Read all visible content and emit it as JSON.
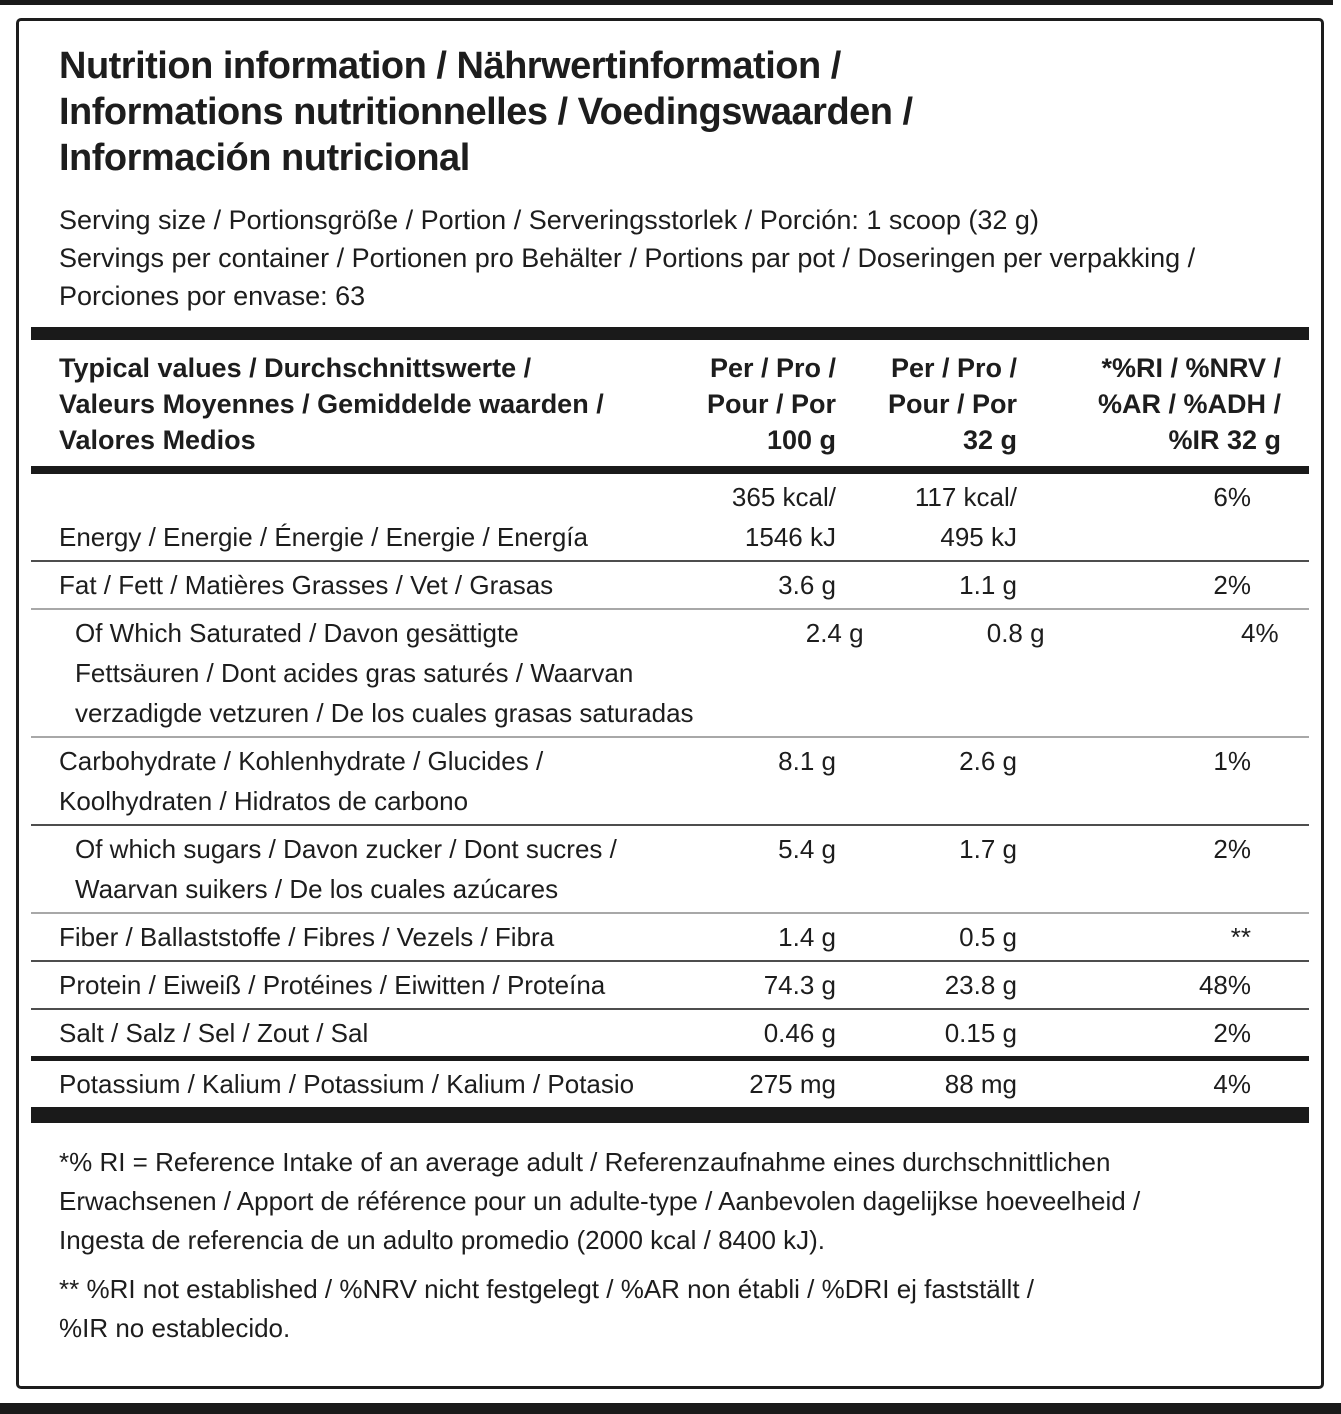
{
  "header": {
    "title_lines": [
      "Nutrition information / Nährwertinformation /",
      "Informations nutritionnelles / Voedingswaarden /",
      "Información nutricional"
    ],
    "serving_size_line": "Serving size / Portionsgröße / Portion / Serveringsstorlek / Porción: 1 scoop (32 g)",
    "servings_per_container_lines": [
      "Servings per container / Portionen pro Behälter / Portions par pot / Doseringen per verpakking /",
      "Porciones por envase: 63"
    ]
  },
  "table": {
    "columns": {
      "typical_values_lines": [
        "Typical values / Durchschnittswerte /",
        "Valeurs Moyennes / Gemiddelde waarden /",
        "Valores Medios"
      ],
      "per_100_lines": [
        "Per / Pro /",
        "Pour / Por",
        "100 g"
      ],
      "per_32_lines": [
        "Per / Pro /",
        "Pour / Por",
        "32 g"
      ],
      "ri_lines": [
        "*%RI / %NRV /",
        "%AR / %ADH /",
        "%IR 32 g"
      ]
    },
    "rows": {
      "energy": {
        "label": "Energy / Energie / Énergie / Energie / Energía",
        "kcal_100": "365 kcal/",
        "kj_100": "1546 kJ",
        "kcal_32": "117 kcal/",
        "kj_32": "495 kJ",
        "ri": "6%"
      },
      "fat": {
        "label": "Fat / Fett / Matières Grasses / Vet / Grasas",
        "v100": "3.6 g",
        "v32": "1.1 g",
        "ri": "2%"
      },
      "saturated": {
        "label_lines": [
          "Of Which Saturated / Davon gesättigte",
          "Fettsäuren / Dont acides gras saturés / Waarvan",
          "verzadigde vetzuren / De los cuales grasas saturadas"
        ],
        "v100": "2.4 g",
        "v32": "0.8 g",
        "ri": "4%"
      },
      "carbohydrate": {
        "label_lines": [
          "Carbohydrate / Kohlenhydrate / Glucides /",
          "Koolhydraten / Hidratos de carbono"
        ],
        "v100": "8.1 g",
        "v32": "2.6 g",
        "ri": "1%"
      },
      "sugars": {
        "label_lines": [
          "Of which sugars / Davon zucker / Dont sucres /",
          "Waarvan suikers / De los cuales azúcares"
        ],
        "v100": "5.4 g",
        "v32": "1.7 g",
        "ri": "2%"
      },
      "fiber": {
        "label": "Fiber / Ballaststoffe / Fibres / Vezels / Fibra",
        "v100": "1.4 g",
        "v32": "0.5 g",
        "ri": "**"
      },
      "protein": {
        "label": "Protein / Eiweiß / Protéines / Eiwitten / Proteína",
        "v100": "74.3 g",
        "v32": "23.8 g",
        "ri": "48%"
      },
      "salt": {
        "label": "Salt / Salz / Sel / Zout / Sal",
        "v100": "0.46 g",
        "v32": "0.15 g",
        "ri": "2%"
      },
      "potassium": {
        "label": "Potassium / Kalium / Potassium / Kalium / Potasio",
        "v100": "275 mg",
        "v32": "88 mg",
        "ri": "4%"
      }
    }
  },
  "footnotes": {
    "reference_intake_lines": [
      "*% RI = Reference Intake of an average adult / Referenzaufnahme eines durchschnittlichen",
      "Erwachsenen / Apport de référence pour un adulte-type / Aanbevolen dagelijkse hoeveelheid /",
      "Ingesta de referencia de un adulto promedio (2000 kcal / 8400 kJ)."
    ],
    "not_established_lines": [
      "** %RI not established / %NRV nicht festgelegt / %AR non établi / %DRI ej fastställt /",
      "%IR no establecido."
    ]
  }
}
